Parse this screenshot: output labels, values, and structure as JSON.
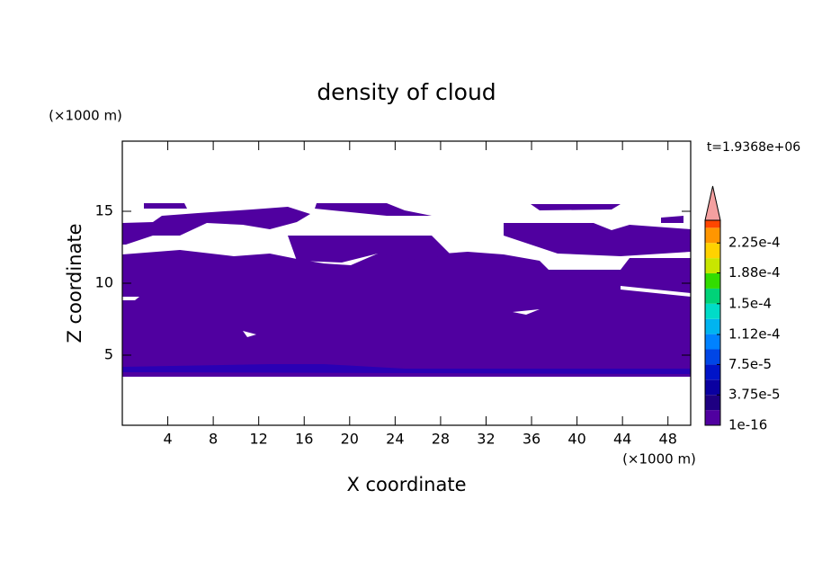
{
  "chart_data": {
    "type": "contour",
    "title": "density of cloud",
    "xlabel": "X coordinate",
    "ylabel": "Z coordinate",
    "xunit": "(×1000 m)",
    "yunit": "(×1000 m)",
    "time_label": "t=1.9368e+06",
    "xlim": [
      0,
      50
    ],
    "xticks": [
      4,
      8,
      12,
      16,
      20,
      24,
      28,
      32,
      36,
      40,
      44,
      48
    ],
    "ylim": [
      0,
      20
    ],
    "yticks": [
      5,
      10,
      15
    ],
    "colorbar": {
      "lim": [
        1e-16,
        0.000253
      ],
      "ticks": [
        1e-16,
        {
          "value": 3.75e-05,
          "label": "3.75e-5"
        },
        {
          "value": 7.5e-05,
          "label": "7.5e-5"
        },
        {
          "value": 0.000112,
          "label": "1.12e-4"
        },
        {
          "value": 0.00015,
          "label": "1.5e-4"
        },
        {
          "value": 0.000188,
          "label": "1.88e-4"
        },
        {
          "value": 0.000225,
          "label": "2.25e-4"
        }
      ],
      "colors": [
        "#5000a0",
        "#1e0082",
        "#0a00a0",
        "#0014c8",
        "#0046e6",
        "#0082ff",
        "#00b4f0",
        "#00dcc8",
        "#00d278",
        "#32dc00",
        "#c8e600",
        "#ffd200",
        "#ff9600",
        "#ff4600"
      ],
      "extend_color": "#f4a0a0"
    }
  }
}
